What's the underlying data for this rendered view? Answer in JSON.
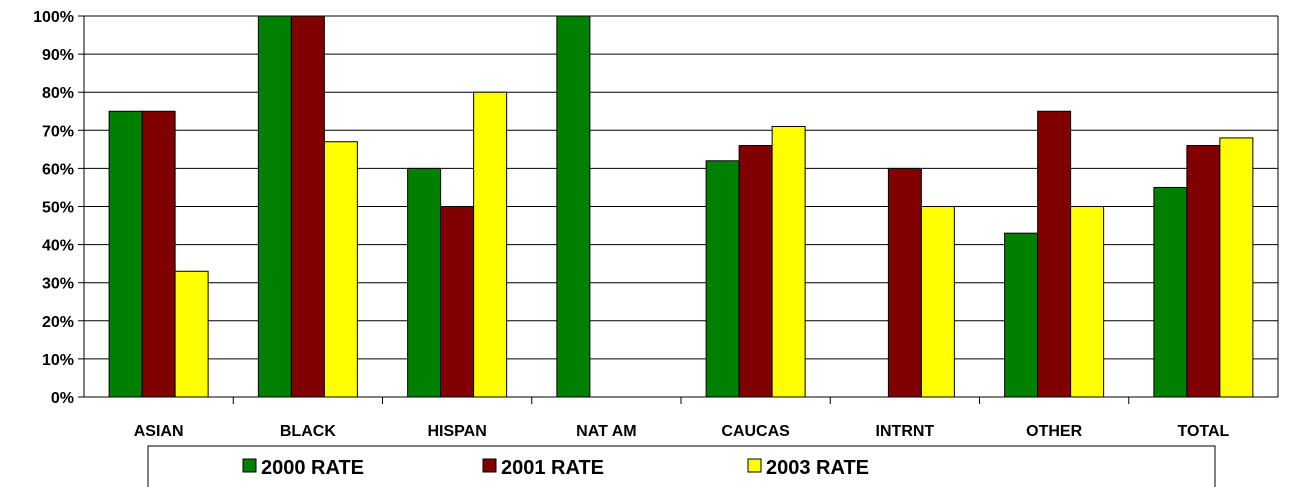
{
  "chart_data": {
    "type": "bar",
    "categories": [
      "ASIAN",
      "BLACK",
      "HISPAN",
      "NAT AM",
      "CAUCAS",
      "INTRNT",
      "OTHER",
      "TOTAL"
    ],
    "series": [
      {
        "name": "2000 RATE",
        "color": "#008000",
        "values": [
          75,
          100,
          60,
          100,
          62,
          null,
          43,
          55
        ]
      },
      {
        "name": "2001 RATE",
        "color": "#800000",
        "values": [
          75,
          100,
          50,
          null,
          66,
          60,
          75,
          66
        ]
      },
      {
        "name": "2003 RATE",
        "color": "#ffff00",
        "values": [
          33,
          67,
          80,
          null,
          71,
          50,
          50,
          68
        ]
      }
    ],
    "yticks": [
      "0%",
      "10%",
      "20%",
      "30%",
      "40%",
      "50%",
      "60%",
      "70%",
      "80%",
      "90%",
      "100%"
    ],
    "ylim": [
      0,
      100
    ],
    "title": "",
    "xlabel": "",
    "ylabel": "",
    "grid": true,
    "legend": "bottom"
  }
}
